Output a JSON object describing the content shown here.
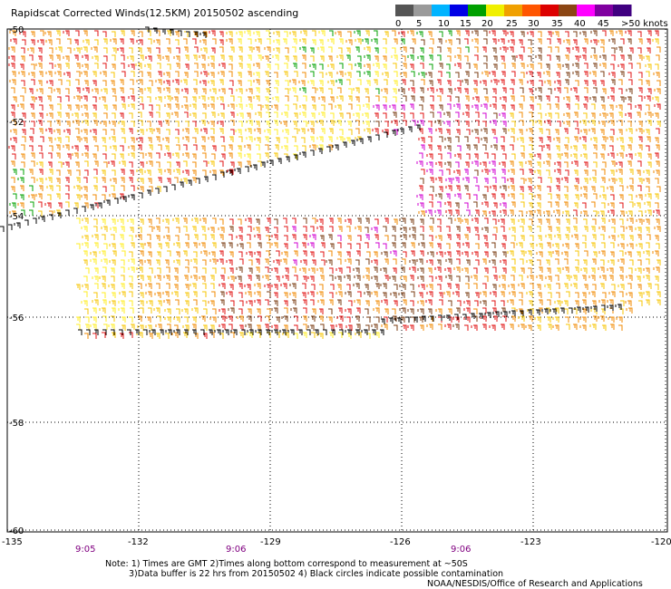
{
  "title": "Rapidscat Corrected Winds(12.5KM) 20150502 ascending",
  "legend": {
    "labels": [
      "0",
      "5",
      "10",
      "15",
      "20",
      "25",
      "30",
      "35",
      "40",
      "45",
      ">50 knots"
    ],
    "colors": [
      "#555555",
      "#9a9a9a",
      "#00b4ff",
      "#0000e6",
      "#00a000",
      "#f0f000",
      "#f0a000",
      "#ff5500",
      "#dd0000",
      "#8b4513",
      "#ff00ff",
      "#8000a0",
      "#400080"
    ]
  },
  "axes": {
    "lon_ticks": [
      "-135",
      "-132",
      "-129",
      "-126",
      "-123",
      "-120"
    ],
    "lat_ticks": [
      "-50",
      "-52",
      "-54",
      "-56",
      "-58",
      "-60"
    ]
  },
  "times": [
    "9:05",
    "9:06",
    "9:06"
  ],
  "notes": {
    "line1": "Note: 1) Times are GMT 2)Times along bottom correspond to measurement at ~50S",
    "line2": "3)Data buffer is 22 hrs from 20150502 4) Black circles indicate possible contamination",
    "credit": "NOAA/NESDIS/Office of Research and Applications"
  },
  "wind_palette": {
    "light": "#ffee22",
    "yellow": "#f7c400",
    "orange": "#f08a00",
    "red": "#e01010",
    "brown": "#7a3b10",
    "green": "#00a000",
    "magenta": "#d000d0",
    "black": "#000000"
  }
}
